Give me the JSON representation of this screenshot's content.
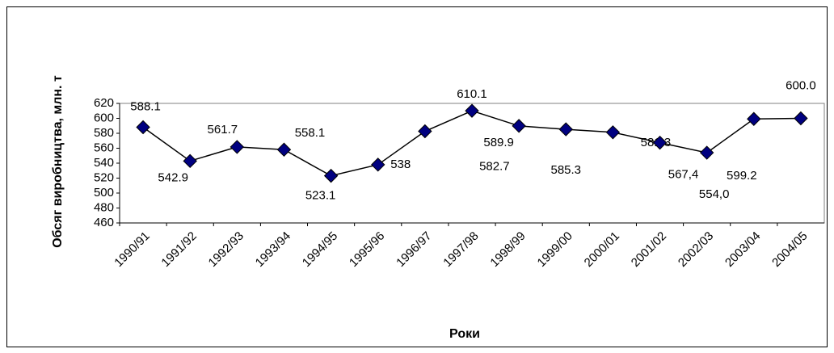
{
  "chart_data": {
    "type": "line",
    "x_label": "Роки",
    "y_label": "Обсяг виробництва, млн. т",
    "categories": [
      "1990/91",
      "1991/92",
      "1992/93",
      "1993/94",
      "1994/95",
      "1995/96",
      "1996/97",
      "1997/98",
      "1998/99",
      "1999/00",
      "2000/01",
      "2001/02",
      "2002/03",
      "2003/04",
      "2004/05"
    ],
    "series": [
      {
        "color": "#000080",
        "values": [
          588.1,
          542.9,
          561.7,
          558.1,
          523.1,
          538,
          582.7,
          610.1,
          589.9,
          585.3,
          581.3,
          567.4,
          554.0,
          599.2,
          600.0
        ],
        "value_labels": [
          "588.1",
          "542.9",
          "561.7",
          "558.1",
          "523.1",
          "538",
          "582.7",
          "610.1",
          "589.9",
          "585.3",
          "581.3",
          "567,4",
          "554,0",
          "599.2",
          "600.0"
        ]
      }
    ],
    "ylim": [
      460,
      620
    ],
    "yticks": [
      460,
      480,
      500,
      520,
      540,
      560,
      580,
      600,
      620
    ],
    "grid": false
  }
}
